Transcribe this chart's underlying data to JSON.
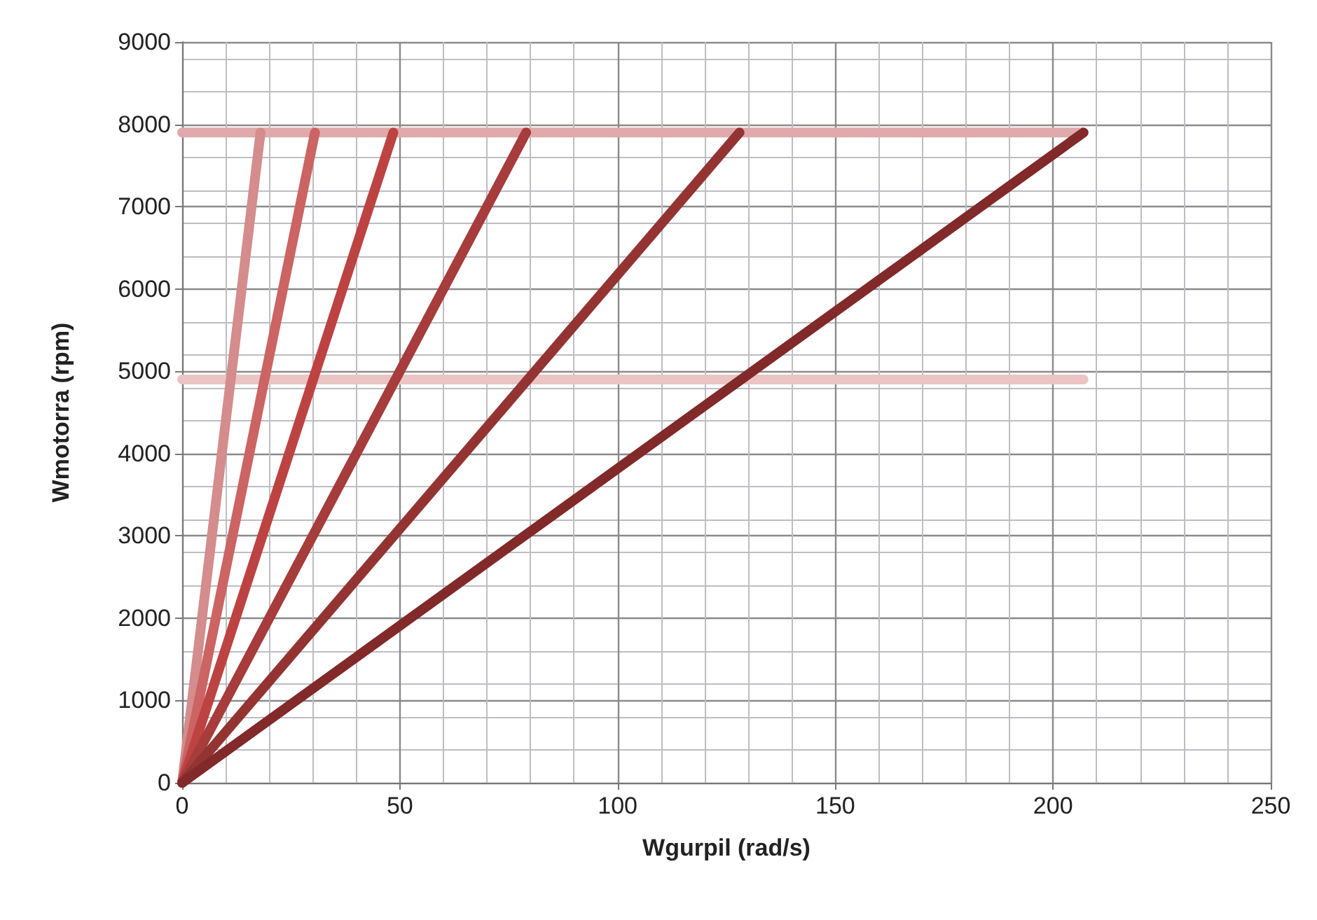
{
  "chart_data": {
    "type": "line",
    "xlabel": "Wgurpil (rad/s)",
    "ylabel": "Wmotorra (rpm)",
    "xlim": [
      0,
      250
    ],
    "xticks": [
      0,
      50,
      100,
      150,
      200,
      250
    ],
    "ylim": [
      0,
      9000
    ],
    "yticks": [
      0,
      1000,
      2000,
      3000,
      4000,
      5000,
      6000,
      7000,
      8000,
      9000
    ],
    "grid": true,
    "marker": "none",
    "line_style": "solid",
    "series": [
      {
        "color": "#e0a9ab",
        "x": [
          0,
          207
        ],
        "values": [
          7900,
          7900
        ]
      },
      {
        "color": "#ebc4c4",
        "x": [
          0,
          207
        ],
        "values": [
          4900,
          4900
        ]
      },
      {
        "color": "#d48c8c",
        "x": [
          0,
          18
        ],
        "values": [
          0,
          7900
        ]
      },
      {
        "color": "#cb6462",
        "x": [
          0,
          30.5
        ],
        "values": [
          0,
          7900
        ]
      },
      {
        "color": "#bd4342",
        "x": [
          0,
          48.5
        ],
        "values": [
          0,
          7900
        ]
      },
      {
        "color": "#a63c3b",
        "x": [
          0,
          79
        ],
        "values": [
          0,
          7900
        ]
      },
      {
        "color": "#933433",
        "x": [
          0,
          128
        ],
        "values": [
          0,
          7900
        ]
      },
      {
        "color": "#82292a",
        "x": [
          0,
          207
        ],
        "values": [
          0,
          7900
        ]
      }
    ]
  }
}
